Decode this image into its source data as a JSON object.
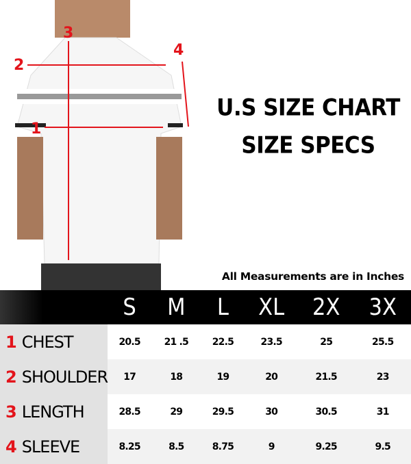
{
  "titles": {
    "line1": "U.S SIZE CHART",
    "line2": "SIZE SPECS"
  },
  "note": "All Measurements are in Inches",
  "diagram_markers": [
    "1",
    "2",
    "3",
    "4"
  ],
  "table": {
    "sizes": [
      "S",
      "M",
      "L",
      "XL",
      "2X",
      "3X"
    ],
    "rows": [
      {
        "num": "1",
        "label": "CHEST",
        "values": [
          "20.5",
          "21 .5",
          "22.5",
          "23.5",
          "25",
          "25.5"
        ]
      },
      {
        "num": "2",
        "label": "SHOULDER",
        "values": [
          "17",
          "18",
          "19",
          "20",
          "21.5",
          "23"
        ]
      },
      {
        "num": "3",
        "label": "LENGTH",
        "values": [
          "28.5",
          "29",
          "29.5",
          "30",
          "30.5",
          "31"
        ]
      },
      {
        "num": "4",
        "label": "SLEEVE",
        "values": [
          "8.25",
          "8.5",
          "8.75",
          "9",
          "9.25",
          "9.5"
        ]
      }
    ]
  },
  "colors": {
    "accent": "#e3141b",
    "header": "#000000"
  }
}
